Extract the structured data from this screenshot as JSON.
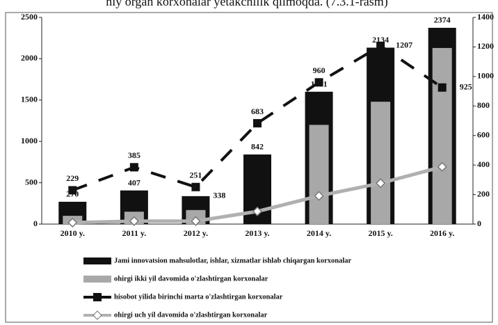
{
  "caption": "niy organ korxonalar yetakchilik qilmoqda. (7.3.1-rasm)",
  "chart_data": {
    "type": "bar_line",
    "categories": [
      "2010 y.",
      "2011 y.",
      "2012 y.",
      "2013 y.",
      "2014 y.",
      "2015 y.",
      "2016 y."
    ],
    "ylim": [
      0,
      2500
    ],
    "yticks": [
      0,
      500,
      1000,
      1500,
      2000,
      2500
    ],
    "y2lim": [
      0,
      1400
    ],
    "y2ticks": [
      0,
      200,
      400,
      600,
      800,
      1000,
      1200,
      1400
    ],
    "series": [
      {
        "name": "Jami innovatsion mahsulotlar, ishlar, xizmatlar ishlab chiqargan korxonalar",
        "type": "bar",
        "color": "#111111",
        "values": [
          270,
          407,
          338,
          842,
          1601,
          2134,
          2374
        ]
      },
      {
        "name": "ohirgi ikki yil davomida o'zlashtirgan korxonalar",
        "type": "bar",
        "color": "#a8a8a8",
        "values": [
          100,
          150,
          170,
          0,
          1200,
          1480,
          2130
        ]
      },
      {
        "name": "hisobot yilida birinchi marta o'zlashtirgan korxonalar",
        "type": "line",
        "axis": "y2",
        "color": "#111111",
        "values": [
          229,
          385,
          251,
          683,
          960,
          1207,
          925
        ]
      },
      {
        "name": "ohirgi uch yil davomida o'zlashtirgan korxonalar",
        "type": "line",
        "axis": "y2",
        "color": "#b0b0b0",
        "values": [
          10,
          20,
          20,
          86,
          191,
          277,
          388
        ]
      }
    ]
  }
}
